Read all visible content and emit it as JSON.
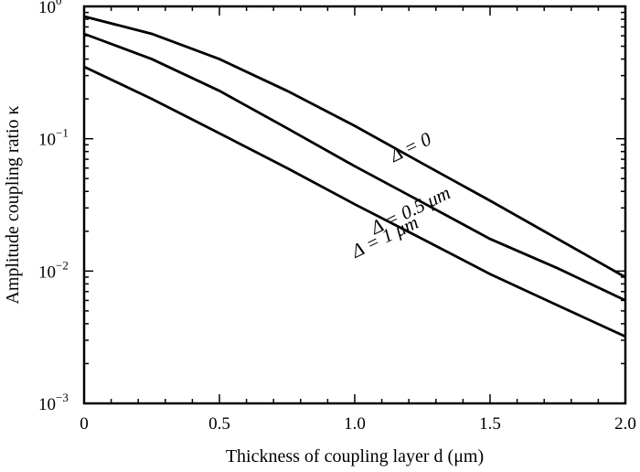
{
  "chart_data": {
    "type": "line",
    "xlabel": "Thickness of coupling layer d (μm)",
    "ylabel": "Amplitude coupling ratio κ",
    "xlim": [
      0,
      2.0
    ],
    "ylim": [
      0.001,
      1
    ],
    "yscale": "log",
    "x_ticks": [
      "0",
      "0.5",
      "1.0",
      "1.5",
      "2.0"
    ],
    "y_ticks": [
      {
        "base": "10",
        "exp": "0"
      },
      {
        "base": "10",
        "exp": "-1"
      },
      {
        "base": "10",
        "exp": "-2"
      },
      {
        "base": "10",
        "exp": "-3"
      }
    ],
    "grid": false,
    "series": [
      {
        "name": "Δ = 0",
        "label": "Δ = 0",
        "x": [
          0,
          0.25,
          0.5,
          0.75,
          1.0,
          1.25,
          1.5,
          1.75,
          2.0
        ],
        "y": [
          0.84,
          0.62,
          0.4,
          0.23,
          0.125,
          0.065,
          0.034,
          0.0175,
          0.009
        ]
      },
      {
        "name": "Δ = 0.5 μm",
        "label": "Δ = 0.5 μm",
        "x": [
          0,
          0.25,
          0.5,
          0.75,
          1.0,
          1.25,
          1.5,
          1.75,
          2.0
        ],
        "y": [
          0.62,
          0.4,
          0.23,
          0.12,
          0.062,
          0.033,
          0.0175,
          0.0105,
          0.006
        ]
      },
      {
        "name": "Δ = 1 μm",
        "label": "Δ = 1 μm",
        "x": [
          0,
          0.25,
          0.5,
          0.75,
          1.0,
          1.25,
          1.5,
          1.75,
          2.0
        ],
        "y": [
          0.35,
          0.2,
          0.11,
          0.06,
          0.032,
          0.0175,
          0.0095,
          0.0055,
          0.0032
        ]
      }
    ]
  }
}
